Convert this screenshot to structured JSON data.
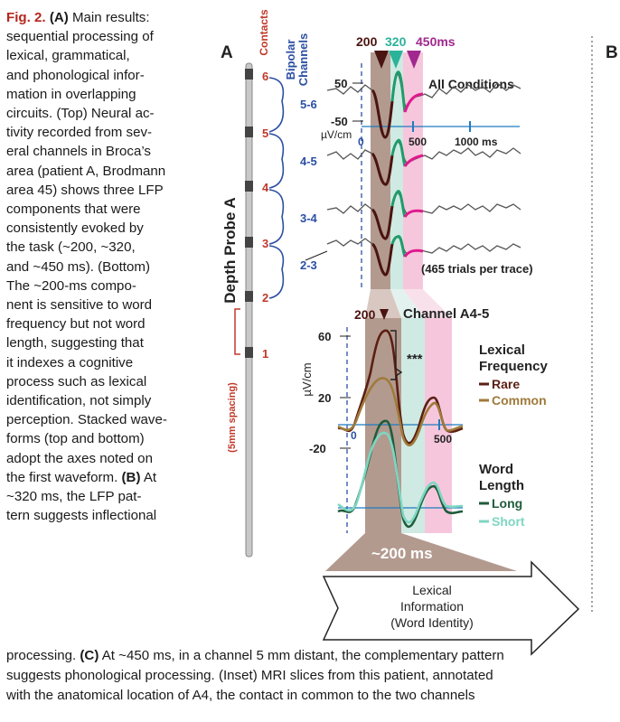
{
  "caption": {
    "fig_label": "Fig. 2.",
    "panel_a_label": "(A)",
    "panel_b_label": "(B)",
    "panel_c_label": "(C)",
    "lines": [
      "Main results:",
      "sequential processing of",
      "lexical, grammatical,",
      "and phonological infor-",
      "mation in overlapping",
      "circuits. (Top) Neural ac-",
      "tivity recorded from sev-",
      "eral channels in Broca’s",
      "area (patient A, Brodmann",
      "area 45) shows three LFP",
      "components that were",
      "consistently evoked by",
      "the task (~200, ~320,",
      "and ~450 ms). (Bottom)",
      "The ~200-ms compo-",
      "nent is sensitive to word",
      "frequency but not word",
      "length, suggesting that",
      "it indexes a cognitive",
      "process such as lexical",
      "identification, not simply",
      "perception. Stacked wave-",
      "forms (top and bottom)",
      "adopt the axes noted on",
      "the first waveform.",
      "At",
      "~320 ms, the LFP pat-",
      "tern suggests inflectional"
    ],
    "bottom_lines": [
      "processing.",
      "At ~450 ms, in a channel 5 mm distant, the complementary pattern",
      "suggests phonological processing. (Inset) MRI slices from this patient, annotated",
      "with the anatomical location of A4, the contact in common to the two channels"
    ]
  },
  "panel_a": {
    "letter": "A",
    "letter_b": "B",
    "probe_label": "Depth Probe A",
    "contacts_label": "Contacts",
    "spacing_label": "(5mm spacing)",
    "bipolar_label_1": "Bipolar",
    "bipolar_label_2": "Channels",
    "contacts": [
      "6",
      "5",
      "4",
      "3",
      "2",
      "1"
    ],
    "channels": [
      "5-6",
      "4-5",
      "3-4",
      "2-3"
    ],
    "latency_labels": {
      "t200": "200",
      "t320": "320",
      "t450": "450ms"
    },
    "all_conditions": "All Conditions",
    "top_axis": {
      "y_pos": "50",
      "y_neg": "-50",
      "unit": "µV/cm",
      "x0": "0",
      "x500": "500",
      "x1000": "1000 ms"
    },
    "trials_note": "(465 trials per trace)",
    "channel_title": "Channel A4-5",
    "marker_200": "200",
    "bottom_axis": {
      "y60": "60",
      "y20": "20",
      "yneg20": "-20",
      "unit": "µV/cm",
      "x0": "0",
      "x500": "500"
    },
    "significance": "***",
    "freq_title_1": "Lexical",
    "freq_title_2": "Frequency",
    "rare": "Rare",
    "common": "Common",
    "len_title_1": "Word",
    "len_title_2": "Length",
    "long": "Long",
    "short": "Short",
    "window_label": "~200 ms",
    "box_lines": [
      "Lexical",
      "Information",
      "(Word Identity)"
    ]
  },
  "colors": {
    "probe_contact_text": "#c0392b",
    "channel_blue": "#2c4fa3",
    "brown_band": "#b39a8f",
    "teal_band": "#cfeae3",
    "pink_band": "#f6c7dc",
    "marker_200": "#4a1410",
    "marker_320": "#2bb39a",
    "marker_450": "#a0288e",
    "rare": "#5c1f12",
    "common": "#a07a3a",
    "long": "#1f5c3a",
    "short": "#7ed6c2",
    "magenta": "#e0198f",
    "axis_blue": "#1f7bc0"
  }
}
